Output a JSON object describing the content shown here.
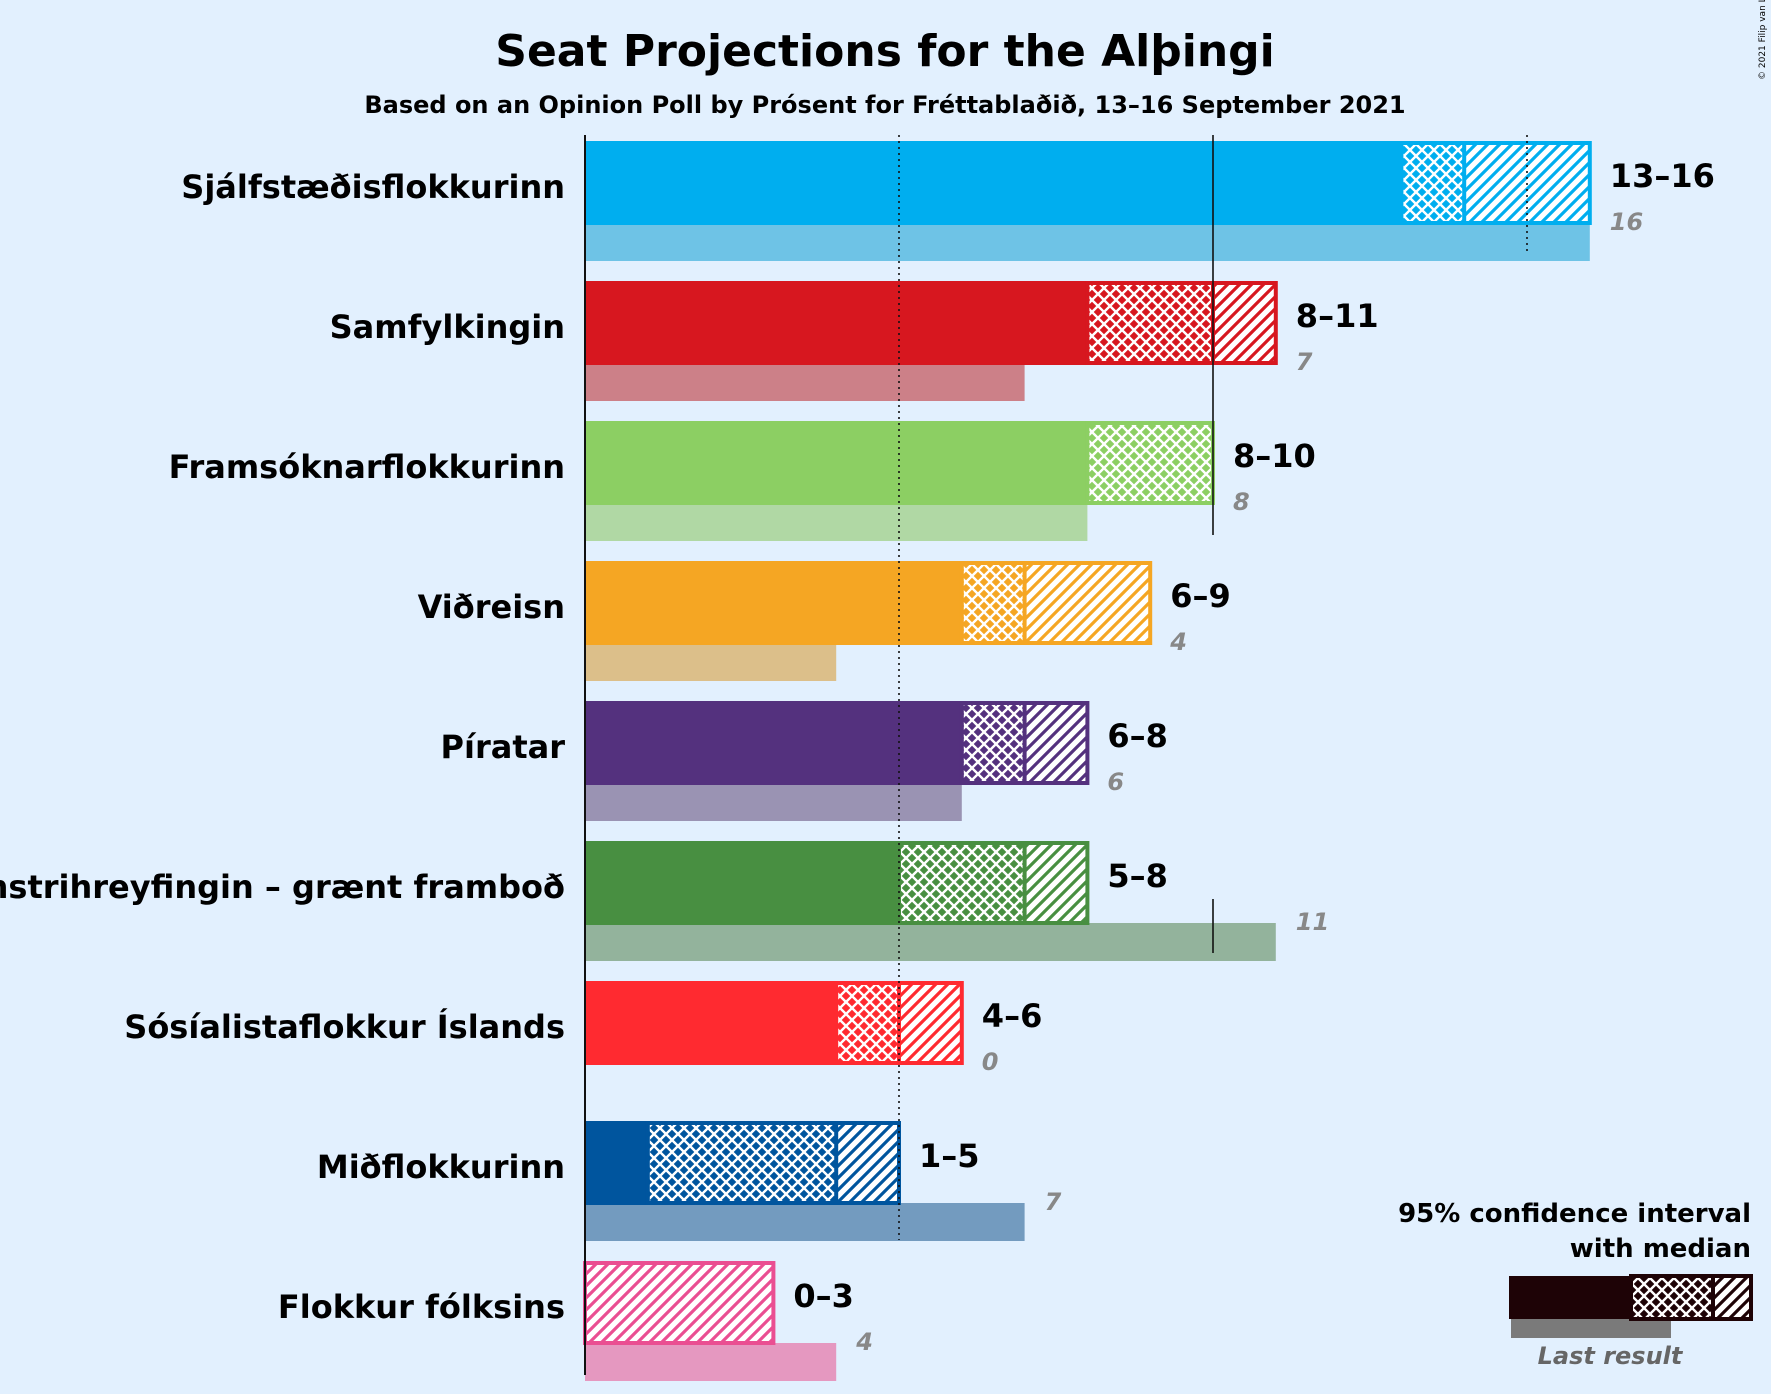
{
  "title": "Seat Projections for the Alþingi",
  "subtitle": "Based on an Opinion Poll by Prósent for Fréttablaðið, 13–16 September 2021",
  "copyright": "© 2021 Filip van Laenen",
  "legend": {
    "line1": "95% confidence interval",
    "line2": "with median",
    "last_result": "Last result",
    "color": "#1e0306"
  },
  "chart_data": {
    "type": "bar",
    "orientation": "horizontal",
    "title": "Seat Projections for the Alþingi",
    "subtitle": "Based on an Opinion Poll by Prósent for Fréttablaðið, 13–16 September 2021",
    "x_unit": "seats",
    "xlim": [
      0,
      18
    ],
    "majority_lines": [
      5,
      10,
      15
    ],
    "parties": [
      {
        "name": "Sjálfstæðisflokkurinn",
        "low": 13,
        "median": 14,
        "high": 16,
        "last": 16,
        "range_label": "13–16",
        "last_label": "16",
        "color": "#00aeef",
        "last_color": "#6ec3e6"
      },
      {
        "name": "Samfylkingin",
        "low": 8,
        "median": 10,
        "high": 11,
        "last": 7,
        "range_label": "8–11",
        "last_label": "7",
        "color": "#d7171f",
        "last_color": "#cc8088"
      },
      {
        "name": "Framsóknarflokkurinn",
        "low": 8,
        "median": 10,
        "high": 10,
        "last": 8,
        "range_label": "8–10",
        "last_label": "8",
        "color": "#8ccf63",
        "last_color": "#b0d8a4"
      },
      {
        "name": "Viðreisn",
        "low": 6,
        "median": 7,
        "high": 9,
        "last": 4,
        "range_label": "6–9",
        "last_label": "4",
        "color": "#f5a623",
        "last_color": "#dcbf8a"
      },
      {
        "name": "Píratar",
        "low": 6,
        "median": 7,
        "high": 8,
        "last": 6,
        "range_label": "6–8",
        "last_label": "6",
        "color": "#54317e",
        "last_color": "#9a93b3"
      },
      {
        "name": "Vinstrihreyfingin – grænt framboð",
        "low": 5,
        "median": 7,
        "high": 8,
        "last": 11,
        "range_label": "5–8",
        "last_label": "11",
        "color": "#488f41",
        "last_color": "#93b39c"
      },
      {
        "name": "Sósíalistaflokkur Íslands",
        "low": 4,
        "median": 5,
        "high": 6,
        "last": 0,
        "range_label": "4–6",
        "last_label": "0",
        "color": "#ff2a30",
        "last_color": "#e89a9a"
      },
      {
        "name": "Miðflokkurinn",
        "low": 1,
        "median": 4,
        "high": 5,
        "last": 7,
        "range_label": "1–5",
        "last_label": "7",
        "color": "#00559e",
        "last_color": "#739bbf"
      },
      {
        "name": "Flokkur fólksins",
        "low": 0,
        "median": 0,
        "high": 3,
        "last": 4,
        "range_label": "0–3",
        "last_label": "4",
        "color": "#ea4e92",
        "last_color": "#e598c0"
      }
    ]
  }
}
